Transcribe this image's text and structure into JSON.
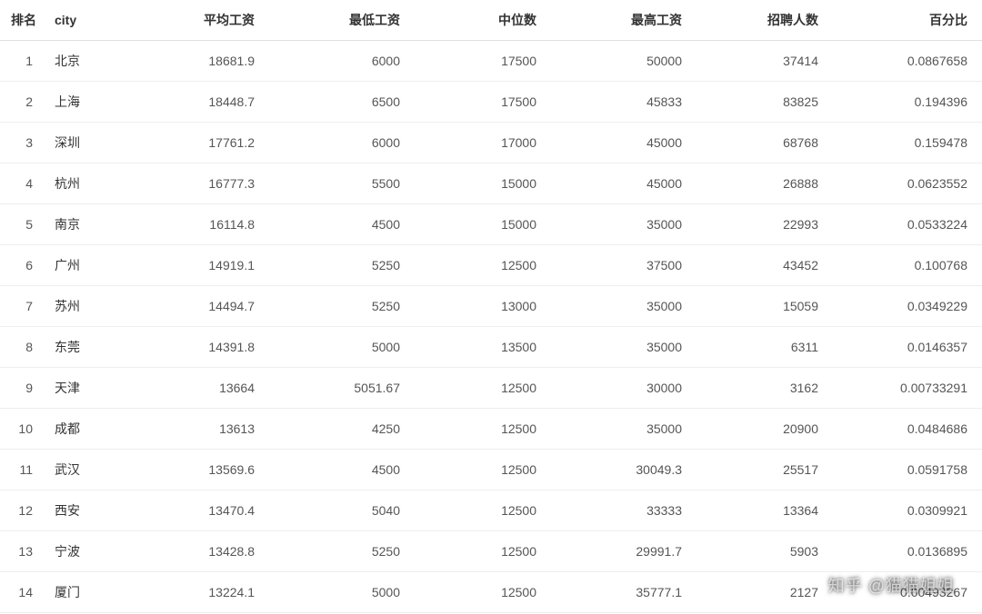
{
  "table": {
    "type": "table",
    "background_color": "#ffffff",
    "text_color": "#333333",
    "row_border_color": "#eeeeee",
    "header_border_color": "#e0e0e0",
    "font_size": 14,
    "columns": [
      {
        "key": "rank",
        "label": "排名",
        "align": "left",
        "width": 50
      },
      {
        "key": "city",
        "label": "city",
        "align": "left",
        "width": 80
      },
      {
        "key": "avg_salary",
        "label": "平均工资",
        "align": "right",
        "width": 160
      },
      {
        "key": "min_salary",
        "label": "最低工资",
        "align": "right",
        "width": 160
      },
      {
        "key": "median",
        "label": "中位数",
        "align": "right",
        "width": 150
      },
      {
        "key": "max_salary",
        "label": "最高工资",
        "align": "right",
        "width": 160
      },
      {
        "key": "recruit_count",
        "label": "招聘人数",
        "align": "right",
        "width": 150
      },
      {
        "key": "percentage",
        "label": "百分比",
        "align": "right",
        "width": 170
      }
    ],
    "rows": [
      {
        "rank": "1",
        "city": "北京",
        "avg_salary": "18681.9",
        "min_salary": "6000",
        "median": "17500",
        "max_salary": "50000",
        "recruit_count": "37414",
        "percentage": "0.0867658"
      },
      {
        "rank": "2",
        "city": "上海",
        "avg_salary": "18448.7",
        "min_salary": "6500",
        "median": "17500",
        "max_salary": "45833",
        "recruit_count": "83825",
        "percentage": "0.194396"
      },
      {
        "rank": "3",
        "city": "深圳",
        "avg_salary": "17761.2",
        "min_salary": "6000",
        "median": "17000",
        "max_salary": "45000",
        "recruit_count": "68768",
        "percentage": "0.159478"
      },
      {
        "rank": "4",
        "city": "杭州",
        "avg_salary": "16777.3",
        "min_salary": "5500",
        "median": "15000",
        "max_salary": "45000",
        "recruit_count": "26888",
        "percentage": "0.0623552"
      },
      {
        "rank": "5",
        "city": "南京",
        "avg_salary": "16114.8",
        "min_salary": "4500",
        "median": "15000",
        "max_salary": "35000",
        "recruit_count": "22993",
        "percentage": "0.0533224"
      },
      {
        "rank": "6",
        "city": "广州",
        "avg_salary": "14919.1",
        "min_salary": "5250",
        "median": "12500",
        "max_salary": "37500",
        "recruit_count": "43452",
        "percentage": "0.100768"
      },
      {
        "rank": "7",
        "city": "苏州",
        "avg_salary": "14494.7",
        "min_salary": "5250",
        "median": "13000",
        "max_salary": "35000",
        "recruit_count": "15059",
        "percentage": "0.0349229"
      },
      {
        "rank": "8",
        "city": "东莞",
        "avg_salary": "14391.8",
        "min_salary": "5000",
        "median": "13500",
        "max_salary": "35000",
        "recruit_count": "6311",
        "percentage": "0.0146357"
      },
      {
        "rank": "9",
        "city": "天津",
        "avg_salary": "13664",
        "min_salary": "5051.67",
        "median": "12500",
        "max_salary": "30000",
        "recruit_count": "3162",
        "percentage": "0.00733291"
      },
      {
        "rank": "10",
        "city": "成都",
        "avg_salary": "13613",
        "min_salary": "4250",
        "median": "12500",
        "max_salary": "35000",
        "recruit_count": "20900",
        "percentage": "0.0484686"
      },
      {
        "rank": "11",
        "city": "武汉",
        "avg_salary": "13569.6",
        "min_salary": "4500",
        "median": "12500",
        "max_salary": "30049.3",
        "recruit_count": "25517",
        "percentage": "0.0591758"
      },
      {
        "rank": "12",
        "city": "西安",
        "avg_salary": "13470.4",
        "min_salary": "5040",
        "median": "12500",
        "max_salary": "33333",
        "recruit_count": "13364",
        "percentage": "0.0309921"
      },
      {
        "rank": "13",
        "city": "宁波",
        "avg_salary": "13428.8",
        "min_salary": "5250",
        "median": "12500",
        "max_salary": "29991.7",
        "recruit_count": "5903",
        "percentage": "0.0136895"
      },
      {
        "rank": "14",
        "city": "厦门",
        "avg_salary": "13224.1",
        "min_salary": "5000",
        "median": "12500",
        "max_salary": "35777.1",
        "recruit_count": "2127",
        "percentage": "0.00493267"
      }
    ]
  },
  "watermark": {
    "text": "知乎 @猫猫姐姐",
    "color": "rgba(255,255,255,0.6)",
    "font_size": 18
  }
}
